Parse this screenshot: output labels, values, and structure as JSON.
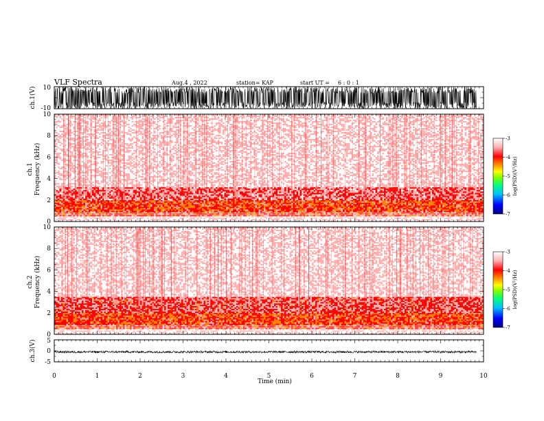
{
  "header": {
    "title": "VLF Spectra",
    "date": "Aug.4 , 2022",
    "station": "station= KAP",
    "start_label": "start UT =",
    "start_time": "6 : 0 : 1"
  },
  "colorbar_label": "log(PSD)(V²/Hz)",
  "colors": {
    "spectrogram_scale": [
      "#000080",
      "#0000ff",
      "#00c0ff",
      "#00ff80",
      "#80ff00",
      "#ffff00",
      "#ff8000",
      "#ff0000",
      "#ffb0b0",
      "#ffffff"
    ],
    "waveform": "#000000"
  },
  "chart_data": [
    {
      "type": "line",
      "panel": "ch1-waveform",
      "ylabel": "ch.1(V)",
      "ylim": [
        -10,
        10
      ],
      "yticks": [
        "10",
        "-10"
      ],
      "xlim": [
        0,
        10
      ],
      "description_values": {
        "amplitude_range_v": [
          -10,
          10
        ]
      }
    },
    {
      "type": "heatmap",
      "panel": "ch1-spectrogram",
      "ylabel": "ch.1\nFrequency (kHz)",
      "ylabel_line1": "ch.1",
      "ylabel_line2": "Frequency (kHz)",
      "ylim": [
        0,
        10
      ],
      "yticks": [
        "0",
        "2",
        "4",
        "6",
        "8",
        "10"
      ],
      "xlim": [
        0,
        10
      ],
      "colorbar": {
        "min": -7,
        "max": -3,
        "ticks": [
          "-3",
          "-4",
          "-5",
          "-6",
          "-7"
        ]
      },
      "bands": [
        {
          "freq_khz": [
            0,
            0.5
          ],
          "level": -3.2
        },
        {
          "freq_khz": [
            0.5,
            1.0
          ],
          "level": -3.9
        },
        {
          "freq_khz": [
            1.0,
            2.0
          ],
          "level": -4.0
        },
        {
          "freq_khz": [
            2.0,
            3.2
          ],
          "level": -3.6
        },
        {
          "freq_khz": [
            3.2,
            10.0
          ],
          "level": -3.2
        }
      ]
    },
    {
      "type": "heatmap",
      "panel": "ch2-spectrogram",
      "ylabel": "ch.2\nFrequency (kHz)",
      "ylabel_line1": "ch.2",
      "ylabel_line2": "Frequency (kHz)",
      "ylim": [
        0,
        10
      ],
      "yticks": [
        "0",
        "2",
        "4",
        "6",
        "8",
        "10"
      ],
      "xlim": [
        0,
        10
      ],
      "colorbar": {
        "min": -7,
        "max": -3,
        "ticks": [
          "-3",
          "-4",
          "-5",
          "-6",
          "-7"
        ]
      },
      "bands": [
        {
          "freq_khz": [
            0,
            0.5
          ],
          "level": -3.2
        },
        {
          "freq_khz": [
            0.5,
            1.0
          ],
          "level": -3.9
        },
        {
          "freq_khz": [
            1.0,
            2.0
          ],
          "level": -4.0
        },
        {
          "freq_khz": [
            2.0,
            3.5
          ],
          "level": -3.7
        },
        {
          "freq_khz": [
            3.5,
            10.0
          ],
          "level": -3.2
        }
      ]
    },
    {
      "type": "line",
      "panel": "ch3-waveform",
      "ylabel": "ch.3(V)",
      "ylim": [
        -5,
        5
      ],
      "yticks": [
        "5",
        "0",
        "-5"
      ],
      "xlim": [
        0,
        10
      ],
      "xlabel": "Time (min)",
      "xticks": [
        "0",
        "1",
        "2",
        "3",
        "4",
        "5",
        "6",
        "7",
        "8",
        "9",
        "10"
      ],
      "description_values": {
        "amplitude_range_v": [
          -1,
          0
        ]
      }
    }
  ]
}
